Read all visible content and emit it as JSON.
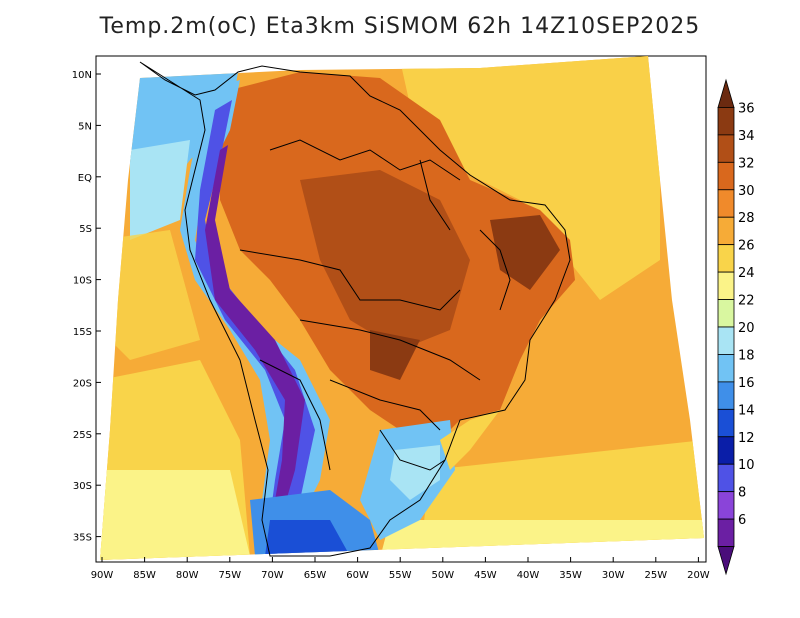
{
  "title": "Temp.2m(oC) Eta3km SiSMOM 62h 14Z10SEP2025",
  "lat_labels": [
    "10N",
    "5N",
    "EQ",
    "5S",
    "10S",
    "15S",
    "20S",
    "25S",
    "30S",
    "35S"
  ],
  "lon_labels": [
    "90W",
    "85W",
    "80W",
    "75W",
    "70W",
    "65W",
    "60W",
    "55W",
    "50W",
    "45W",
    "40W",
    "35W",
    "30W",
    "25W",
    "20W"
  ],
  "colorbar": {
    "labels": [
      "36",
      "34",
      "32",
      "30",
      "28",
      "26",
      "24",
      "22",
      "20",
      "18",
      "16",
      "14",
      "12",
      "10",
      "8",
      "6"
    ],
    "colors": [
      "#6b2a10",
      "#8b3a12",
      "#b14f17",
      "#d9681d",
      "#f08a2b",
      "#f6ab37",
      "#f9d44a",
      "#fbf388",
      "#d9f7a0",
      "#a9e4f4",
      "#71c3f4",
      "#3f8fe9",
      "#1a4fd6",
      "#0a1ea8",
      "#4f52e6",
      "#8a44d9",
      "#6b1fa3",
      "#4a0d7a"
    ]
  }
}
